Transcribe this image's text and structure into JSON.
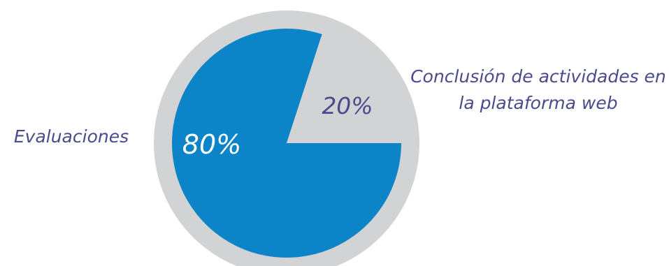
{
  "chart_data": {
    "type": "pie",
    "slices": [
      {
        "name": "Evaluaciones",
        "value": 80,
        "label": "80%",
        "color": "#0b84c8"
      },
      {
        "name": "Conclusión de actividades en la plataforma web",
        "value": 20,
        "label": "20%",
        "color": "#d2d3d5"
      }
    ],
    "category_labels": {
      "evaluaciones": "Evaluaciones",
      "conclusion_line1": "Conclusión de actividades en",
      "conclusion_line2": "la plataforma web"
    },
    "colors": {
      "ring": "#d2d3d5",
      "label_text": "#4a4b8c",
      "value_text_on_blue": "#ffffff",
      "value_text_on_gray": "#4a4b8c"
    },
    "legend": "none"
  }
}
